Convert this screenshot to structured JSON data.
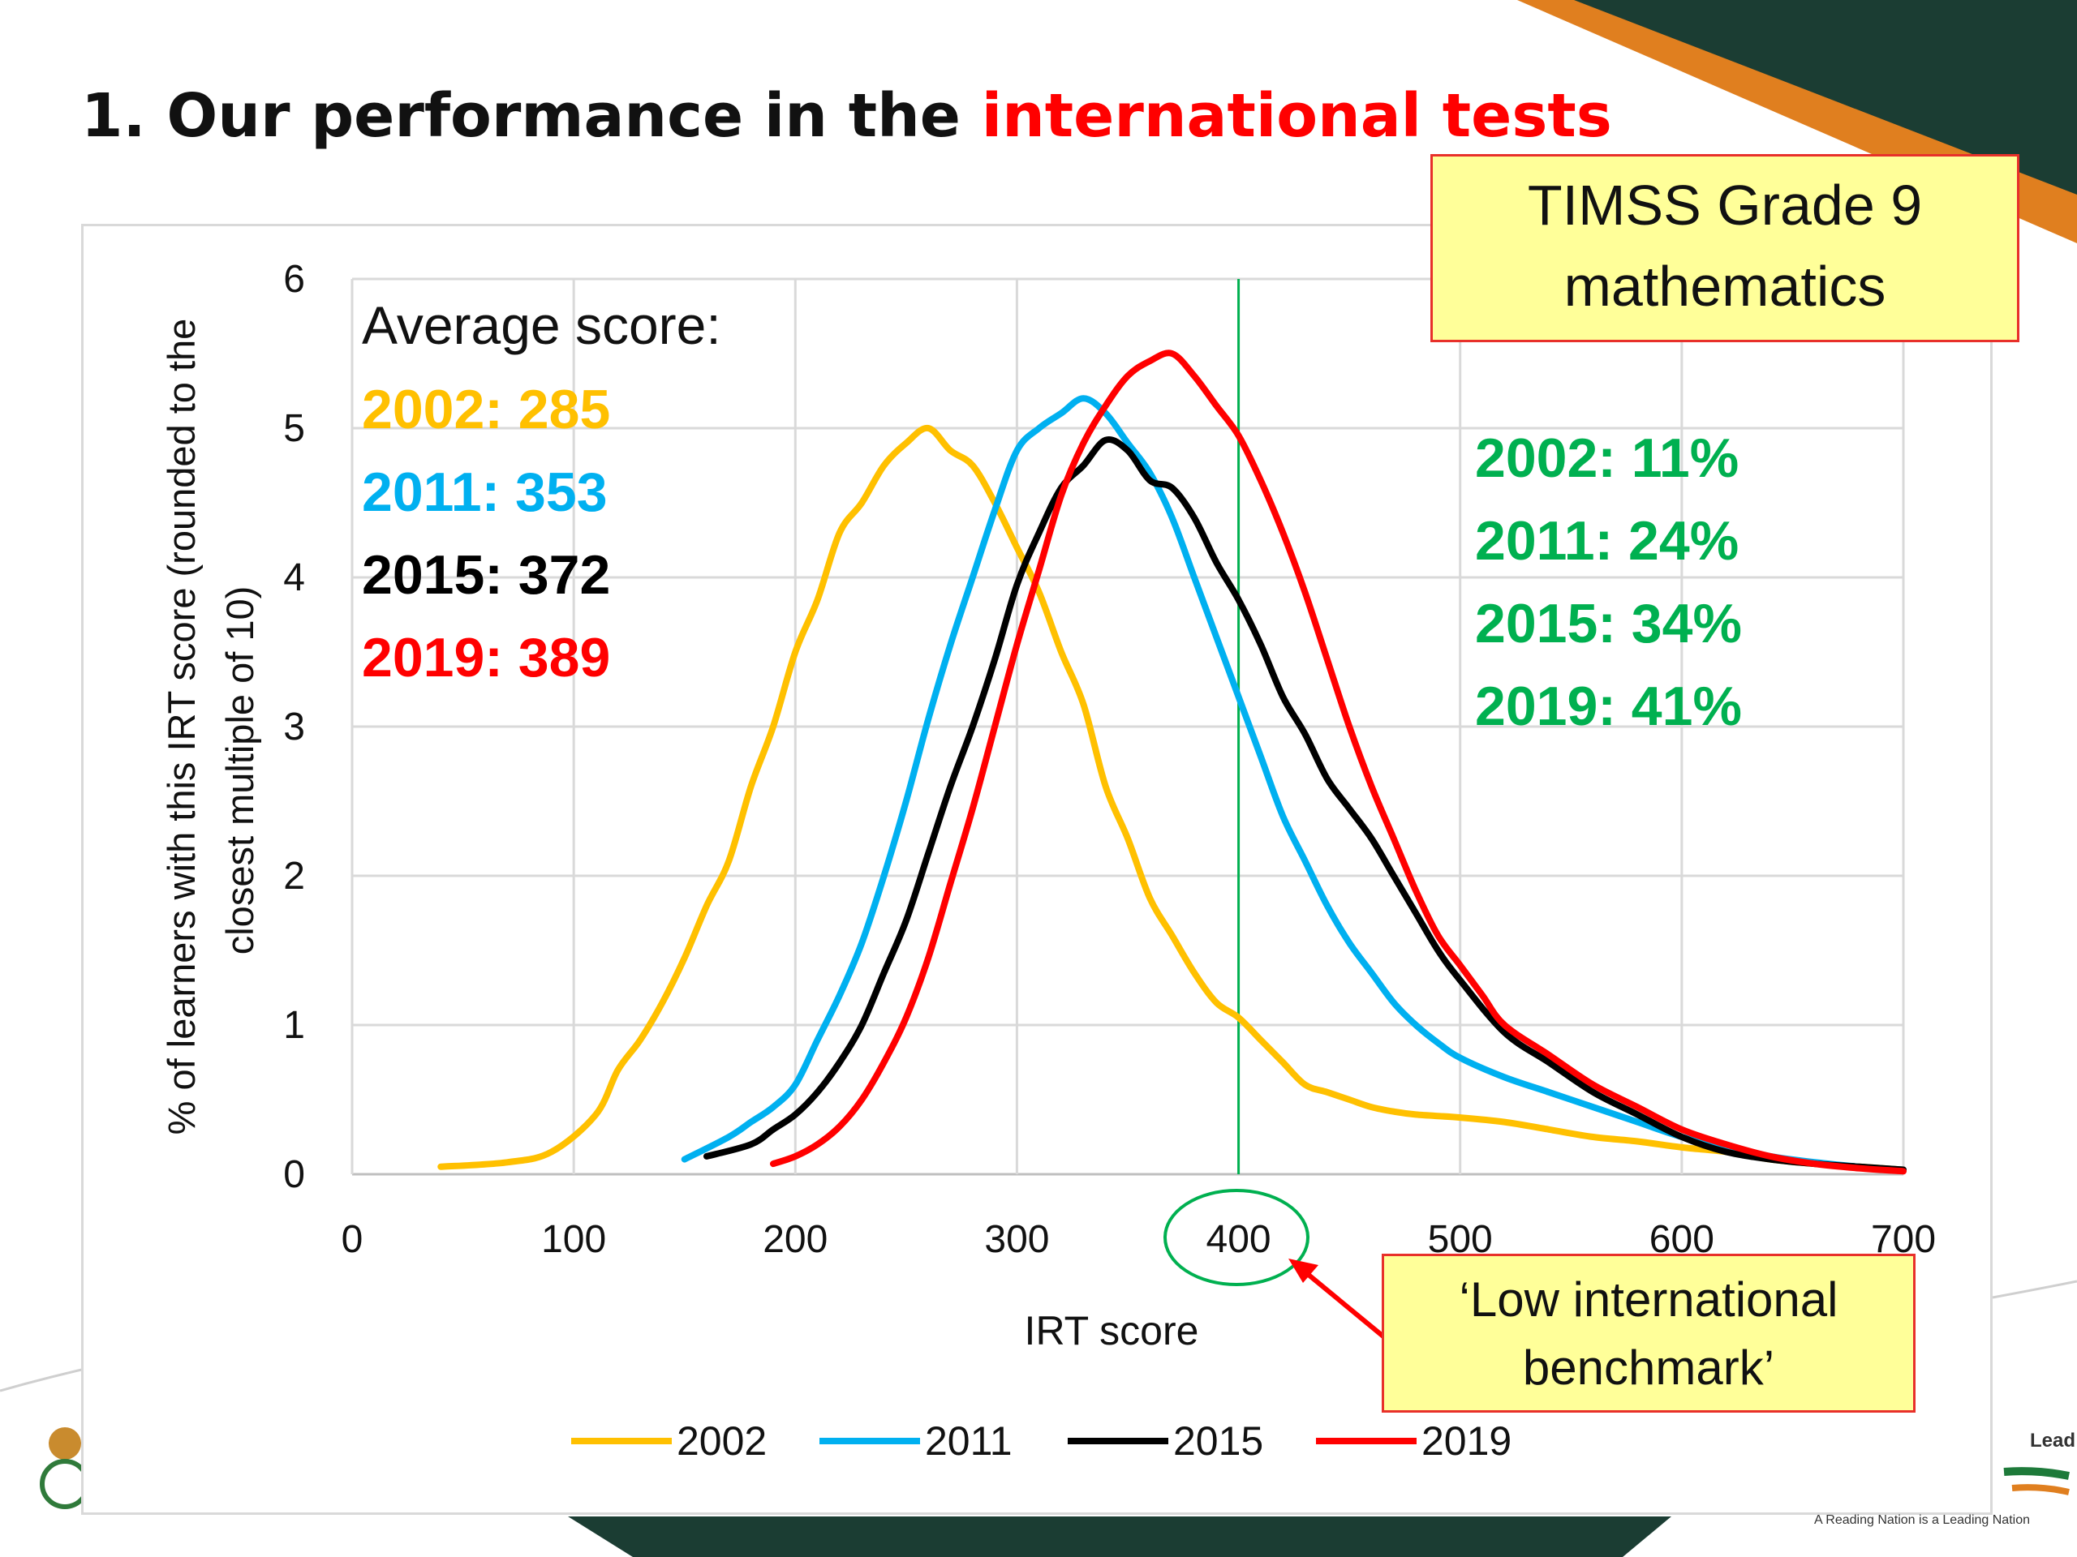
{
  "slide": {
    "title_prefix": "1. Our performance in the ",
    "title_highlight": "international tests",
    "highlight_color": "#ff0000",
    "footer_tagline": "A Reading Nation is a Leading Nation",
    "footer_lead_fragment": "Lead"
  },
  "callouts": {
    "timss_line1": "TIMSS Grade 9",
    "timss_line2": "mathematics",
    "benchmark_line1": "‘Low international",
    "benchmark_line2": "benchmark’"
  },
  "annotations": {
    "average_heading": "Average score:",
    "averages": [
      {
        "text": "2002: 285",
        "color": "#ffc000"
      },
      {
        "text": "2011: 353",
        "color": "#00b0f0"
      },
      {
        "text": "2015: 372",
        "color": "#000000"
      },
      {
        "text": "2019: 389",
        "color": "#ff0000"
      }
    ],
    "benchmark_shares": [
      {
        "text": "2002: 11%",
        "color": "#00b050"
      },
      {
        "text": "2011: 24%",
        "color": "#00b050"
      },
      {
        "text": "2015: 34%",
        "color": "#00b050"
      },
      {
        "text": "2019: 41%",
        "color": "#00b050"
      }
    ],
    "benchmark_x": 400
  },
  "chart_data": {
    "type": "line",
    "xlabel": "IRT score",
    "ylabel": "% of learners with this IRT score (rounded to the closest multiple of 10)",
    "xlim": [
      0,
      700
    ],
    "ylim": [
      0,
      6
    ],
    "xticks": [
      0,
      100,
      200,
      300,
      400,
      500,
      600,
      700
    ],
    "yticks": [
      0,
      1,
      2,
      3,
      4,
      5,
      6
    ],
    "grid": true,
    "legend": "bottom",
    "series": [
      {
        "name": "2002",
        "color": "#ffc000",
        "x": [
          40,
          70,
          90,
          110,
          120,
          130,
          140,
          150,
          160,
          170,
          180,
          190,
          200,
          210,
          220,
          230,
          240,
          250,
          260,
          270,
          280,
          290,
          300,
          310,
          320,
          330,
          340,
          350,
          360,
          370,
          380,
          390,
          400,
          410,
          420,
          430,
          440,
          450,
          460,
          470,
          480,
          500,
          520,
          540,
          560,
          580,
          600,
          620,
          640,
          660,
          680,
          700
        ],
        "y": [
          0.05,
          0.08,
          0.15,
          0.4,
          0.7,
          0.9,
          1.15,
          1.45,
          1.8,
          2.1,
          2.6,
          3.0,
          3.5,
          3.85,
          4.3,
          4.5,
          4.75,
          4.9,
          5.0,
          4.85,
          4.75,
          4.5,
          4.2,
          3.9,
          3.5,
          3.15,
          2.6,
          2.25,
          1.85,
          1.6,
          1.35,
          1.15,
          1.05,
          0.9,
          0.75,
          0.6,
          0.55,
          0.5,
          0.45,
          0.42,
          0.4,
          0.38,
          0.35,
          0.3,
          0.25,
          0.22,
          0.18,
          0.15,
          0.1,
          0.07,
          0.05,
          0.03
        ]
      },
      {
        "name": "2011",
        "color": "#00b0f0",
        "x": [
          150,
          170,
          180,
          190,
          200,
          210,
          220,
          230,
          240,
          250,
          260,
          270,
          280,
          290,
          300,
          310,
          320,
          330,
          340,
          350,
          360,
          370,
          380,
          390,
          400,
          410,
          420,
          430,
          440,
          450,
          460,
          470,
          480,
          490,
          500,
          520,
          540,
          560,
          580,
          600,
          620,
          640,
          660,
          680,
          700
        ],
        "y": [
          0.1,
          0.25,
          0.35,
          0.45,
          0.6,
          0.9,
          1.2,
          1.55,
          2.0,
          2.5,
          3.05,
          3.55,
          4.0,
          4.45,
          4.85,
          5.0,
          5.1,
          5.2,
          5.1,
          4.9,
          4.7,
          4.4,
          4.0,
          3.6,
          3.2,
          2.8,
          2.4,
          2.1,
          1.8,
          1.55,
          1.35,
          1.15,
          1.0,
          0.88,
          0.78,
          0.65,
          0.55,
          0.45,
          0.35,
          0.25,
          0.18,
          0.12,
          0.08,
          0.05,
          0.03
        ]
      },
      {
        "name": "2015",
        "color": "#000000",
        "x": [
          160,
          180,
          190,
          200,
          210,
          220,
          230,
          240,
          250,
          260,
          270,
          280,
          290,
          300,
          310,
          320,
          330,
          340,
          350,
          360,
          370,
          380,
          390,
          400,
          410,
          420,
          430,
          440,
          450,
          460,
          470,
          480,
          490,
          500,
          520,
          540,
          560,
          580,
          600,
          620,
          640,
          660,
          680,
          700
        ],
        "y": [
          0.12,
          0.2,
          0.3,
          0.4,
          0.55,
          0.75,
          1.0,
          1.35,
          1.7,
          2.15,
          2.6,
          3.0,
          3.45,
          3.95,
          4.3,
          4.6,
          4.75,
          4.92,
          4.85,
          4.65,
          4.6,
          4.4,
          4.1,
          3.85,
          3.55,
          3.2,
          2.95,
          2.65,
          2.45,
          2.25,
          2.0,
          1.75,
          1.5,
          1.3,
          0.95,
          0.75,
          0.55,
          0.4,
          0.25,
          0.15,
          0.1,
          0.07,
          0.05,
          0.03
        ]
      },
      {
        "name": "2019",
        "color": "#ff0000",
        "x": [
          190,
          200,
          210,
          220,
          230,
          240,
          250,
          260,
          270,
          280,
          290,
          300,
          310,
          320,
          330,
          340,
          350,
          360,
          370,
          380,
          390,
          400,
          410,
          420,
          430,
          440,
          450,
          460,
          470,
          480,
          490,
          500,
          510,
          520,
          540,
          560,
          580,
          600,
          620,
          640,
          660,
          680,
          700
        ],
        "y": [
          0.07,
          0.12,
          0.2,
          0.32,
          0.5,
          0.75,
          1.05,
          1.45,
          1.95,
          2.45,
          3.0,
          3.55,
          4.05,
          4.55,
          4.9,
          5.15,
          5.35,
          5.45,
          5.5,
          5.35,
          5.15,
          4.95,
          4.65,
          4.3,
          3.9,
          3.45,
          3.0,
          2.6,
          2.25,
          1.9,
          1.6,
          1.4,
          1.2,
          1.0,
          0.8,
          0.6,
          0.45,
          0.3,
          0.2,
          0.12,
          0.07,
          0.04,
          0.02
        ]
      }
    ]
  }
}
